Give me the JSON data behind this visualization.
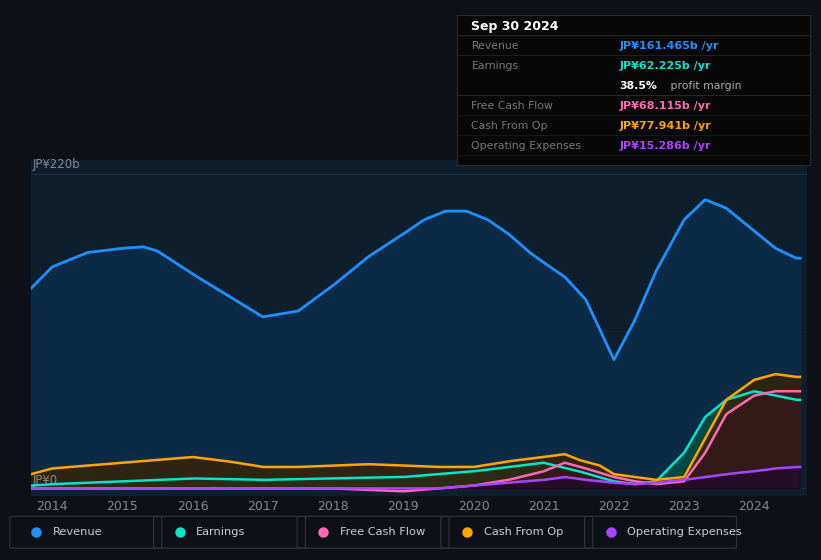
{
  "bg_color": "#0d1117",
  "chart_bg": "#0d1f2d",
  "y_label_top": "JP¥220b",
  "y_label_bottom": "JP¥0",
  "x_ticks": [
    2014,
    2015,
    2016,
    2017,
    2018,
    2019,
    2020,
    2021,
    2022,
    2023,
    2024
  ],
  "info_box": {
    "date": "Sep 30 2024",
    "rows": [
      {
        "label": "Revenue",
        "value": "JP¥161.465b /yr",
        "color": "#1e90ff"
      },
      {
        "label": "Earnings",
        "value": "JP¥62.225b /yr",
        "color": "#00e5cc"
      },
      {
        "label": "",
        "value": "",
        "color": "#ffffff",
        "is_margin": true
      },
      {
        "label": "Free Cash Flow",
        "value": "JP¥68.115b /yr",
        "color": "#ff69b4"
      },
      {
        "label": "Cash From Op",
        "value": "JP¥77.941b /yr",
        "color": "#ffa500"
      },
      {
        "label": "Operating Expenses",
        "value": "JP¥15.286b /yr",
        "color": "#aa44ff"
      }
    ]
  },
  "series": {
    "revenue": {
      "color": "#1e90ff",
      "fill_color": "#0e2d4a",
      "x": [
        2013.7,
        2014.0,
        2014.5,
        2015.0,
        2015.3,
        2015.5,
        2016.0,
        2016.5,
        2017.0,
        2017.5,
        2018.0,
        2018.5,
        2019.0,
        2019.3,
        2019.6,
        2019.9,
        2020.2,
        2020.5,
        2020.8,
        2021.0,
        2021.3,
        2021.6,
        2022.0,
        2022.3,
        2022.6,
        2023.0,
        2023.3,
        2023.6,
        2024.0,
        2024.3,
        2024.6
      ],
      "y": [
        140,
        155,
        165,
        168,
        169,
        166,
        150,
        135,
        120,
        124,
        142,
        162,
        178,
        188,
        194,
        194,
        188,
        178,
        165,
        158,
        148,
        132,
        90,
        118,
        152,
        188,
        202,
        196,
        180,
        168,
        161
      ]
    },
    "earnings": {
      "color": "#00e5cc",
      "fill_color": "#004d44",
      "x": [
        2013.7,
        2014.0,
        2015.0,
        2016.0,
        2017.0,
        2018.0,
        2019.0,
        2019.5,
        2020.0,
        2020.5,
        2021.0,
        2021.5,
        2022.0,
        2022.3,
        2022.6,
        2023.0,
        2023.3,
        2023.6,
        2024.0,
        2024.3,
        2024.6
      ],
      "y": [
        2,
        3,
        5,
        7,
        6,
        7,
        8,
        10,
        12,
        15,
        18,
        12,
        5,
        3,
        5,
        25,
        50,
        62,
        68,
        65,
        62
      ]
    },
    "free_cash_flow": {
      "color": "#ff69b4",
      "fill_color": "#3a1020",
      "x": [
        2013.7,
        2014.0,
        2015.0,
        2016.0,
        2017.0,
        2018.0,
        2018.5,
        2019.0,
        2019.5,
        2020.0,
        2020.5,
        2021.0,
        2021.3,
        2021.6,
        2022.0,
        2022.3,
        2022.6,
        2023.0,
        2023.3,
        2023.6,
        2024.0,
        2024.3,
        2024.6
      ],
      "y": [
        0,
        0,
        0,
        0,
        0,
        0,
        -1,
        -2,
        0,
        2,
        6,
        12,
        18,
        14,
        8,
        5,
        3,
        5,
        25,
        52,
        65,
        68,
        68
      ]
    },
    "cash_from_op": {
      "color": "#ffa500",
      "fill_color": "#3a2200",
      "x": [
        2013.7,
        2014.0,
        2014.5,
        2015.0,
        2015.5,
        2016.0,
        2016.5,
        2017.0,
        2017.5,
        2018.0,
        2018.5,
        2019.0,
        2019.5,
        2020.0,
        2020.5,
        2021.0,
        2021.3,
        2021.5,
        2021.8,
        2022.0,
        2022.3,
        2022.6,
        2023.0,
        2023.3,
        2023.6,
        2024.0,
        2024.3,
        2024.6
      ],
      "y": [
        10,
        14,
        16,
        18,
        20,
        22,
        19,
        15,
        15,
        16,
        17,
        16,
        15,
        15,
        19,
        22,
        24,
        20,
        16,
        10,
        8,
        6,
        8,
        35,
        62,
        76,
        80,
        78
      ]
    },
    "operating_expenses": {
      "color": "#aa44ff",
      "fill_color": "#1a0530",
      "x": [
        2013.7,
        2014.0,
        2015.0,
        2016.0,
        2017.0,
        2018.0,
        2019.0,
        2019.5,
        2020.0,
        2020.5,
        2021.0,
        2021.3,
        2021.6,
        2022.0,
        2022.3,
        2022.6,
        2023.0,
        2023.3,
        2023.6,
        2024.0,
        2024.3,
        2024.6
      ],
      "y": [
        0,
        0,
        0,
        0,
        0,
        0,
        0,
        0,
        2,
        4,
        6,
        8,
        6,
        4,
        3,
        4,
        6,
        8,
        10,
        12,
        14,
        15
      ]
    }
  },
  "legend": [
    {
      "label": "Revenue",
      "color": "#1e90ff"
    },
    {
      "label": "Earnings",
      "color": "#00e5cc"
    },
    {
      "label": "Free Cash Flow",
      "color": "#ff69b4"
    },
    {
      "label": "Cash From Op",
      "color": "#ffa500"
    },
    {
      "label": "Operating Expenses",
      "color": "#aa44ff"
    }
  ]
}
